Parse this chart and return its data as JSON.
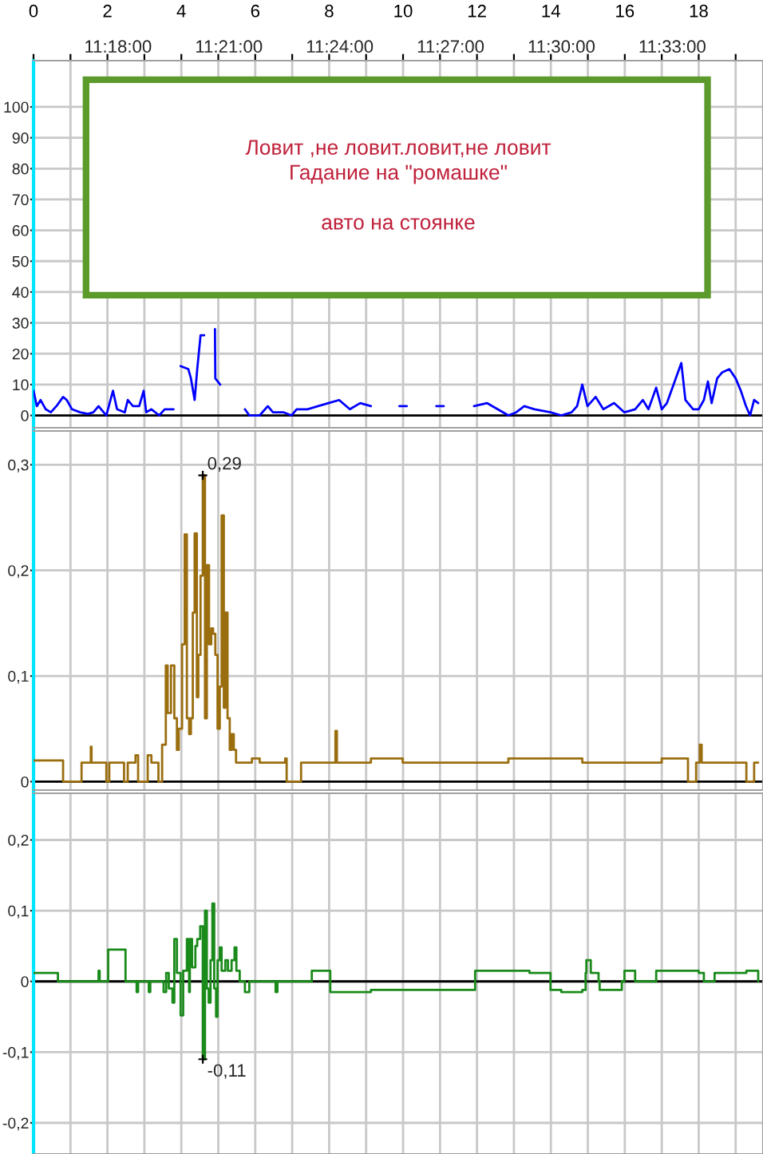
{
  "chart_data": [
    {
      "type": "line",
      "xlim": [
        0,
        19.74
      ],
      "ylim": [
        -4,
        115
      ],
      "xticks": [
        0,
        {
          "value": 1,
          "label": null
        },
        2,
        {
          "value": 3,
          "label": null
        },
        4,
        {
          "value": 5,
          "label": null
        },
        6,
        {
          "value": 7,
          "label": null
        },
        8,
        {
          "value": 9,
          "label": null
        },
        10,
        {
          "value": 11,
          "label": null
        },
        12,
        {
          "value": 13,
          "label": null
        },
        14,
        {
          "value": 15,
          "label": null
        },
        16,
        {
          "value": 17,
          "label": null
        },
        18,
        {
          "value": 19,
          "label": null
        }
      ],
      "x2lim": [
        11.2619,
        11.5909
      ],
      "x2ticks": [
        {
          "value": 11.3,
          "label": "11:18:00"
        },
        {
          "value": 11.35,
          "label": "11:21:00"
        },
        {
          "value": 11.4,
          "label": "11:24:00"
        },
        {
          "value": 11.45,
          "label": "11:27:00"
        },
        {
          "value": 11.5,
          "label": "11:30:00"
        },
        {
          "value": 11.55,
          "label": "11:33:00"
        }
      ],
      "yticks": [
        0,
        10,
        20,
        30,
        40,
        50,
        60,
        70,
        80,
        90,
        100
      ],
      "grid": true,
      "ref_lines": [
        {
          "axis": "y",
          "value": 0,
          "color": "#000000"
        }
      ],
      "annotations": [
        "Ловит ,не ловит.ловит,не ловит\nГадание на \"ромашке\"\n\nавто на стоянке"
      ],
      "series": [
        {
          "color": "#0000ff",
          "x": [
            0,
            0.09,
            0.19,
            0.33,
            0.47,
            0.62,
            0.8,
            0.9,
            1.04,
            1.26,
            1.47,
            1.62,
            1.76,
            1.83,
            1.97,
            2.15,
            2.26,
            2.47,
            2.55,
            2.69,
            2.86,
            2.98,
            3.05,
            3.19,
            3.4,
            3.55,
            3.79,
            3.9,
            3.98,
            4.19,
            4.26,
            4.36,
            4.43,
            4.52,
            4.62,
            4.7,
            4.91,
            4.92,
            5.05,
            5.3,
            5.72,
            5.84,
            6.12,
            6.34,
            6.48,
            6.77,
            6.98,
            7.12,
            7.41,
            7.7,
            7.98,
            8.27,
            8.56,
            8.84,
            9.13,
            9.5,
            9.9,
            10.1,
            10.5,
            10.9,
            11.1,
            11.5,
            11.92,
            12.27,
            12.56,
            12.85,
            13.06,
            13.28,
            13.56,
            13.99,
            14.28,
            14.56,
            14.71,
            14.85,
            14.99,
            15.21,
            15.42,
            15.71,
            15.99,
            16.28,
            16.49,
            16.64,
            16.85,
            17.0,
            17.14,
            17.35,
            17.53,
            17.64,
            17.85,
            18.0,
            18.14,
            18.25,
            18.35,
            18.5,
            18.64,
            18.83,
            19.0,
            19.14,
            19.28,
            19.39,
            19.5,
            19.61
          ],
          "values": [
            8,
            3,
            5,
            2,
            1,
            3,
            6,
            5,
            2,
            1,
            0.5,
            1,
            3,
            2,
            0,
            8,
            2,
            1,
            5,
            3,
            3,
            8,
            1,
            2,
            0,
            2,
            2,
            null,
            16,
            15,
            12,
            5,
            15,
            26,
            26,
            null,
            28,
            12,
            10,
            null,
            2,
            0,
            0,
            3,
            1,
            1,
            0,
            2,
            2,
            3,
            4,
            5,
            2,
            4,
            3,
            null,
            3,
            3,
            null,
            3,
            3,
            null,
            3,
            4,
            2,
            0,
            1,
            3,
            2,
            1,
            0,
            1,
            3,
            10,
            3,
            6,
            2,
            4,
            1,
            2,
            5,
            2,
            9,
            2,
            4,
            11,
            17,
            5,
            2,
            2,
            5,
            11,
            4,
            12,
            14,
            15,
            12,
            8,
            3,
            0,
            5,
            4
          ]
        }
      ]
    },
    {
      "type": "step",
      "xlim": [
        0,
        19.74
      ],
      "ylim": [
        -0.008,
        0.332
      ],
      "tick_labels": "y",
      "xticks": [
        0,
        1,
        2,
        3,
        4,
        5,
        6,
        7,
        8,
        9,
        10,
        11,
        12,
        13,
        14,
        15,
        16,
        17,
        18,
        19
      ],
      "yticks": [
        0,
        {
          "value": 0.1,
          "label": "0,1"
        },
        {
          "value": 0.2,
          "label": "0,2"
        },
        {
          "value": 0.3,
          "label": "0,3"
        }
      ],
      "grid": true,
      "ref_lines": [
        {
          "axis": "y",
          "value": 0,
          "color": "#000000"
        }
      ],
      "annotations": [
        {
          "text": "0,29",
          "x": 4.58,
          "y": 0.29
        }
      ],
      "series": [
        {
          "color": "#9a6e0f",
          "x": [
            0,
            0.76,
            0.8,
            1.26,
            1.3,
            1.52,
            1.55,
            1.57,
            1.97,
            2.05,
            2.4,
            2.45,
            2.55,
            2.76,
            2.83,
            3.09,
            3.19,
            3.38,
            3.48,
            3.58,
            3.63,
            3.72,
            3.81,
            3.88,
            3.93,
            4.02,
            4.09,
            4.15,
            4.21,
            4.26,
            4.31,
            4.36,
            4.42,
            4.46,
            4.52,
            4.58,
            4.64,
            4.69,
            4.75,
            4.81,
            4.86,
            4.92,
            4.98,
            5.04,
            5.09,
            5.15,
            5.19,
            5.25,
            5.31,
            5.36,
            5.42,
            5.48,
            5.69,
            5.91,
            6.12,
            6.55,
            6.81,
            6.85,
            7.2,
            7.24,
            7.7,
            8.13,
            8.17,
            8.21,
            9.13,
            9.99,
            10.56,
            11.27,
            11.99,
            12.85,
            14.13,
            14.85,
            15.57,
            16.28,
            17.0,
            17.71,
            17.93,
            18.03,
            18.08,
            18.57,
            19.14,
            19.29,
            19.5,
            19.61
          ],
          "values": [
            0.02,
            0.02,
            0,
            0,
            0.018,
            0.018,
            0.033,
            0.018,
            0,
            0.018,
            0.018,
            0,
            0.018,
            0.025,
            0,
            0.025,
            0.018,
            0,
            0.035,
            0.11,
            0.065,
            0.11,
            0.06,
            0.03,
            0.05,
            0.13,
            0.234,
            0.06,
            0.045,
            0.06,
            0.16,
            0.235,
            0.08,
            0.12,
            0.195,
            0.29,
            0.06,
            0.205,
            0.13,
            0.145,
            0.14,
            0.12,
            0.05,
            0.09,
            0.252,
            0.07,
            0.16,
            0.06,
            0.03,
            0.045,
            0.03,
            0.018,
            0.018,
            0.022,
            0.018,
            0.018,
            0.022,
            0,
            0,
            0.018,
            0.018,
            0.018,
            0.048,
            0.018,
            0.022,
            0.018,
            0.018,
            0.018,
            0.018,
            0.022,
            0.022,
            0.018,
            0.018,
            0.018,
            0.022,
            0,
            0.018,
            0.035,
            0.018,
            0.018,
            0.018,
            0,
            0.018,
            0.018
          ]
        }
      ]
    },
    {
      "type": "step",
      "xlim": [
        0,
        19.74
      ],
      "ylim": [
        -0.244,
        0.266
      ],
      "tick_labels": "y",
      "xticks": [
        0,
        1,
        2,
        3,
        4,
        5,
        6,
        7,
        8,
        9,
        10,
        11,
        12,
        13,
        14,
        15,
        16,
        17,
        18,
        19
      ],
      "yticks": [
        {
          "value": -0.2,
          "label": "-0,2"
        },
        {
          "value": -0.1,
          "label": "-0,1"
        },
        0,
        {
          "value": 0.1,
          "label": "0,1"
        },
        {
          "value": 0.2,
          "label": "0,2"
        }
      ],
      "grid": true,
      "ref_lines": [
        {
          "axis": "y",
          "value": 0,
          "color": "#000000"
        }
      ],
      "annotations": [
        {
          "text": "-0,11",
          "x": 4.58,
          "y": -0.11
        }
      ],
      "series": [
        {
          "color": "#1a8a1a",
          "x": [
            0,
            0.62,
            0.66,
            1.73,
            1.76,
            1.79,
            1.97,
            2.02,
            2.4,
            2.49,
            2.76,
            2.79,
            2.83,
            3.09,
            3.12,
            3.16,
            3.48,
            3.52,
            3.59,
            3.66,
            3.76,
            3.81,
            3.88,
            3.98,
            4.05,
            4.15,
            4.21,
            4.23,
            4.29,
            4.38,
            4.43,
            4.51,
            4.58,
            4.64,
            4.69,
            4.74,
            4.79,
            4.84,
            4.89,
            4.94,
            4.98,
            5.04,
            5.09,
            5.19,
            5.26,
            5.36,
            5.44,
            5.49,
            5.58,
            5.72,
            5.84,
            6.55,
            6.6,
            7.48,
            7.53,
            7.98,
            8.03,
            8.34,
            9.13,
            9.99,
            10.56,
            11.27,
            11.89,
            11.95,
            12.7,
            13.42,
            13.92,
            13.99,
            14.28,
            14.85,
            14.94,
            14.96,
            15.04,
            15.08,
            15.25,
            15.29,
            15.32,
            15.88,
            15.92,
            15.99,
            16.28,
            16.85,
            17.71,
            18.0,
            18.14,
            18.43,
            18.86,
            19.29,
            19.61
          ],
          "values": [
            0.012,
            0.012,
            0,
            0,
            0.015,
            0,
            0,
            0.045,
            0.045,
            0,
            0,
            -0.015,
            0,
            0,
            -0.015,
            0,
            0,
            -0.015,
            0.012,
            -0.01,
            -0.03,
            0.06,
            0.012,
            -0.048,
            0.015,
            0.06,
            -0.015,
            0.06,
            0.02,
            0.05,
            0.06,
            0.078,
            -0.11,
            0.1,
            -0.01,
            -0.03,
            0.03,
            0.11,
            -0.01,
            -0.05,
            0.03,
            0.048,
            0.015,
            0.03,
            0.015,
            0.03,
            0.048,
            0.015,
            0,
            -0.015,
            0,
            -0.015,
            0,
            0,
            0.015,
            0.015,
            -0.015,
            -0.015,
            -0.012,
            -0.012,
            -0.012,
            -0.012,
            -0.012,
            0.015,
            0.015,
            0.012,
            0.012,
            -0.012,
            -0.015,
            -0.012,
            0.012,
            0.03,
            0.03,
            0.012,
            0.012,
            0,
            -0.012,
            -0.012,
            0,
            0.015,
            0,
            0.015,
            0.015,
            0.012,
            0,
            0.012,
            0.012,
            0.015,
            0
          ]
        }
      ]
    }
  ]
}
